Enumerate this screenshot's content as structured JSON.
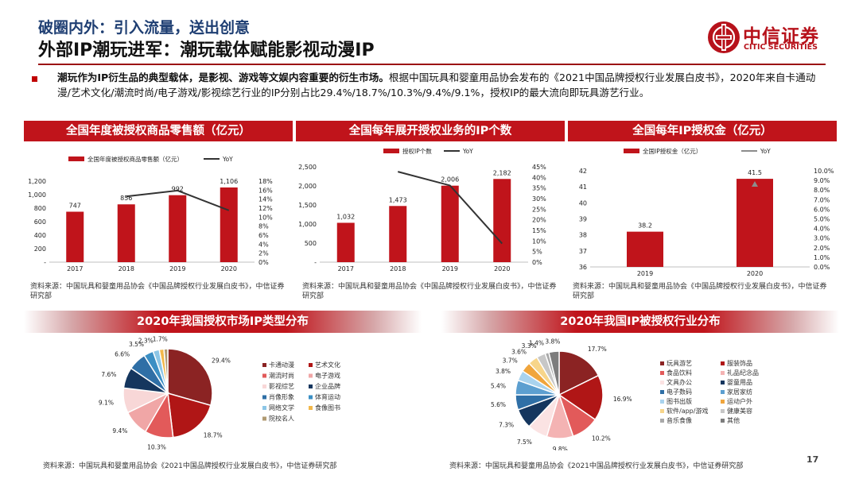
{
  "header": {
    "subtitle": "破圈内外：引入流量，送出创意",
    "title": "外部IP潮玩进军：潮玩载体赋能影视动漫IP",
    "logo_cn": "中信证券",
    "logo_en": "CITIC SECURITIES"
  },
  "intro": {
    "bold": "潮玩作为IP衍生品的典型载体，是影视、游戏等文娱内容重要的衍生市场。",
    "text": "根据中国玩具和婴童用品协会发布的《2021中国品牌授权行业发展白皮书》，2020年来自卡通动漫/艺术文化/潮流时尚/电子游戏/影视综艺行业的IP分别占比29.4%/18.7%/10.3%/9.4%/9.1%，授权IP的最大流向即玩具游艺行业。"
  },
  "sections": {
    "retail_title": "全国年度被授权商品零售额（亿元）",
    "ip_count_title": "全国每年展开授权业务的IP个数",
    "fee_title": "全国每年IP授权金（亿元）",
    "ip_type_title": "2020年我国授权市场IP类型分布",
    "industry_title": "2020年我国IP被授权行业分布"
  },
  "sources": {
    "s1": "资料来源：中国玩具和婴童用品协会《中国品牌授权行业发展白皮书》，中信证券研究部",
    "s2": "资料来源：中国玩具和婴童用品协会《中国品牌授权行业发展白皮书》，中信证券研究部",
    "s3": "资料来源：中国玩具和婴童用品协会《中国品牌授权行业发展白皮书》，中信证券研究部",
    "s4": "资料来源：中国玩具和婴童用品协会《2021中国品牌授权行业发展白皮书》，中信证券研究部",
    "s5": "资料来源：中国玩具和婴童用品协会《2021中国品牌授权行业发展白皮书》，中信证券研究部"
  },
  "page_number": "17",
  "colors": {
    "bar": "#c0141b",
    "line": "#333333",
    "yoy_gray": "#8c8c8c"
  },
  "chart_data": [
    {
      "id": "retail",
      "type": "bar",
      "categories": [
        "2017",
        "2018",
        "2019",
        "2020"
      ],
      "values": [
        747,
        856,
        992,
        1106
      ],
      "value_labels": [
        "747",
        "856",
        "992",
        "1,106"
      ],
      "yoy": [
        null,
        0.146,
        0.159,
        0.115
      ],
      "legend": [
        "全国年度被授权商品零售额（亿元）",
        "YoY"
      ],
      "ylim": [
        0,
        1200
      ],
      "y_ticks": [
        "-",
        "200",
        "400",
        "600",
        "800",
        "1,000",
        "1,200"
      ],
      "y2lim": [
        0,
        0.18
      ],
      "y2_ticks": [
        "0%",
        "2%",
        "4%",
        "6%",
        "8%",
        "10%",
        "12%",
        "14%",
        "16%",
        "18%"
      ]
    },
    {
      "id": "ip_count",
      "type": "bar",
      "categories": [
        "2017",
        "2018",
        "2019",
        "2020"
      ],
      "values": [
        1032,
        1473,
        2006,
        2182
      ],
      "value_labels": [
        "1,032",
        "1,473",
        "2,006",
        "2,182"
      ],
      "yoy": [
        null,
        0.427,
        0.362,
        0.088
      ],
      "legend": [
        "授权IP个数",
        "YoY"
      ],
      "ylim": [
        0,
        2500
      ],
      "y_ticks": [
        "-",
        "500",
        "1,000",
        "1,500",
        "2,000",
        "2,500"
      ],
      "y2lim": [
        0,
        0.45
      ],
      "y2_ticks": [
        "0%",
        "5%",
        "10%",
        "15%",
        "20%",
        "25%",
        "30%",
        "35%",
        "40%",
        "45%"
      ]
    },
    {
      "id": "fee",
      "type": "bar",
      "categories": [
        "2019",
        "2020"
      ],
      "values": [
        38.2,
        41.5
      ],
      "value_labels": [
        "38.2",
        "41.5"
      ],
      "yoy": [
        null,
        0.086
      ],
      "legend": [
        "全国IP授权金（亿元）",
        "YoY"
      ],
      "ylim": [
        36,
        42
      ],
      "y_ticks": [
        "36",
        "37",
        "38",
        "39",
        "40",
        "41",
        "42"
      ],
      "y2lim": [
        0,
        0.1
      ],
      "y2_ticks": [
        "0.0%",
        "1.0%",
        "2.0%",
        "3.0%",
        "4.0%",
        "5.0%",
        "6.0%",
        "7.0%",
        "8.0%",
        "9.0%",
        "10.0%"
      ]
    },
    {
      "id": "ip_type",
      "type": "pie",
      "labels": [
        "卡通动漫",
        "艺术文化",
        "潮流时尚",
        "电子游戏",
        "影视综艺",
        "企业品牌",
        "肖像形象",
        "体育运动",
        "网络文学",
        "食像图书",
        "院校名人"
      ],
      "values": [
        29.4,
        18.7,
        10.3,
        9.4,
        9.1,
        7.6,
        6.6,
        3.5,
        2.3,
        1.7,
        1.4
      ],
      "value_labels": [
        "29.4%",
        "18.7%",
        "10.3%",
        "9.4%",
        "9.1%",
        "7.6%",
        "6.6%",
        "3.5%",
        "2.3%",
        "1.7%",
        ""
      ],
      "colors": [
        "#8b2323",
        "#b01616",
        "#e25a5a",
        "#f0a6a6",
        "#f8d7d7",
        "#15365e",
        "#2f6fa6",
        "#3b8fc4",
        "#8cc6e6",
        "#f2b84b",
        "#b09a72"
      ]
    },
    {
      "id": "industry",
      "type": "pie",
      "labels": [
        "玩具游艺",
        "服装饰品",
        "食品饮料",
        "礼品纪念品",
        "文具办公",
        "婴童用品",
        "电子数码",
        "家居家纺",
        "图书出版",
        "运动户外",
        "软件/app/游戏",
        "健康美容",
        "音乐食像",
        "其他"
      ],
      "values": [
        17.7,
        16.9,
        10.2,
        9.8,
        7.5,
        7.3,
        5.6,
        5.4,
        3.8,
        3.7,
        3.6,
        3.3,
        1.4,
        3.8
      ],
      "value_labels": [
        "17.7%",
        "16.9%",
        "10.2%",
        "9.8%",
        "7.5%",
        "7.3%",
        "5.6%",
        "5.4%",
        "3.8%",
        "3.7%",
        "3.6%",
        "3.3%",
        "1.4%",
        "3.8%"
      ],
      "colors": [
        "#8b2323",
        "#b01616",
        "#e25a5a",
        "#f4b3b3",
        "#fbe3e3",
        "#15365e",
        "#2f6fa6",
        "#5c9fd0",
        "#a9d3ee",
        "#f0a53c",
        "#f7d58a",
        "#c7c7c7",
        "#a9a9a9",
        "#7d7d7d"
      ]
    }
  ]
}
